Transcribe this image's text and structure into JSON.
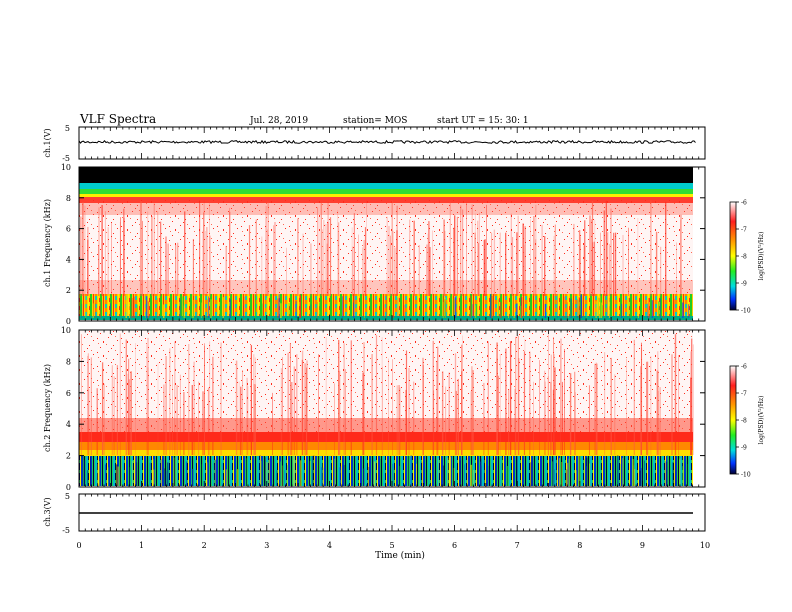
{
  "header": {
    "title": "VLF Spectra",
    "date": "Jul. 28, 2019",
    "station": "station= MOS",
    "start": "start UT =  15: 30: 1"
  },
  "colors": {
    "black": "#000000",
    "white": "#ffffff",
    "red": "#ff2a1a",
    "orange": "#ff8800",
    "yellow": "#ffee00",
    "green": "#22dd22",
    "cyan": "#00dddd",
    "blue": "#0044ff",
    "navy": "#00003a"
  },
  "chart_data": [
    {
      "type": "line",
      "panel": "ch1-waveform",
      "ylabel": "ch.1(V)",
      "ylim": [
        -5,
        5
      ],
      "yticks": [
        "5",
        "-5"
      ],
      "xlim": [
        0,
        10
      ],
      "trace": "noisy, near-constant voltage trace around a slightly positive level for 0–9.8 min"
    },
    {
      "type": "heatmap",
      "panel": "ch1-spectrogram",
      "ylabel": "ch.1\nFrequency (kHz)",
      "ylim": [
        0,
        10
      ],
      "yticks": [
        "0",
        "2",
        "4",
        "6",
        "8",
        "10"
      ],
      "xlim": [
        0,
        10
      ],
      "data_end_min": 9.85,
      "colorbar": {
        "label": "log(PSD)(V²/Hz)",
        "range": [
          -10,
          -6
        ],
        "ticks": [
          "-6",
          "-7",
          "-8",
          "-9",
          "-10"
        ]
      },
      "bands": [
        {
          "fmin": 9.0,
          "fmax": 10.0,
          "level": -6,
          "color": "black"
        },
        {
          "fmin": 7.6,
          "fmax": 9.0,
          "level": -8,
          "color": "multicolor (cyan/green/yellow/red)"
        },
        {
          "fmin": 2.0,
          "fmax": 7.6,
          "level": -7,
          "color": "sparse red speckle"
        },
        {
          "fmin": 0.3,
          "fmax": 1.6,
          "level": -8.5,
          "color": "multicolor (green/yellow/red/blue)"
        }
      ]
    },
    {
      "type": "heatmap",
      "panel": "ch2-spectrogram",
      "ylabel": "ch.2\nFrequency (kHz)",
      "ylim": [
        0,
        10
      ],
      "yticks": [
        "0",
        "2",
        "4",
        "6",
        "8",
        "10"
      ],
      "xlim": [
        0,
        10
      ],
      "data_end_min": 9.85,
      "colorbar": {
        "label": "log(PSD)(V²/Hz)",
        "range": [
          -10,
          -6
        ],
        "ticks": [
          "-6",
          "-7",
          "-8",
          "-9",
          "-10"
        ]
      },
      "bands": [
        {
          "fmin": 3.5,
          "fmax": 10.0,
          "level": -7,
          "color": "sparse red speckle"
        },
        {
          "fmin": 1.6,
          "fmax": 3.5,
          "level": -7.5,
          "color": "red/orange/yellow"
        },
        {
          "fmin": 0.0,
          "fmax": 1.6,
          "level": -9,
          "color": "multicolor with dark blue streaks"
        }
      ]
    },
    {
      "type": "line",
      "panel": "ch3-waveform",
      "ylabel": "ch.3(V)",
      "ylim": [
        -5,
        5
      ],
      "yticks": [
        "5",
        "-5"
      ],
      "xlim": [
        0,
        10
      ],
      "trace": "flat line at a slightly negative level for 0–9.8 min"
    }
  ],
  "xaxis": {
    "label": "Time (min)",
    "ticks": [
      "0",
      "1",
      "2",
      "3",
      "4",
      "5",
      "6",
      "7",
      "8",
      "9",
      "10"
    ]
  }
}
